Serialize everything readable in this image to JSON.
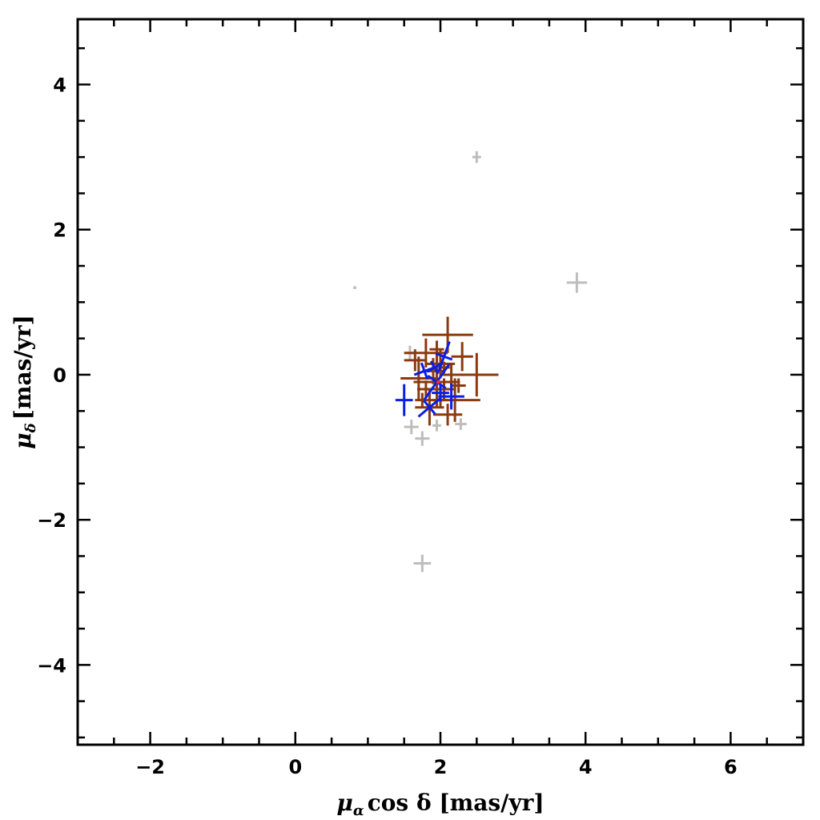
{
  "chart_data": {
    "type": "scatter",
    "xlabel": "μ_α cos δ [mas/yr]",
    "xlabel_parts": {
      "sym": "μ",
      "sub": "α",
      "rest": "cos δ [mas/yr]"
    },
    "ylabel": "μ_δ [mas/yr]",
    "ylabel_parts": {
      "sym": "μ",
      "sub": "δ",
      "rest": "[mas/yr]"
    },
    "xlim": [
      -3,
      7
    ],
    "ylim": [
      -5.1,
      4.9
    ],
    "xticks": [
      -2,
      0,
      2,
      4,
      6
    ],
    "xtick_labels": [
      "−2",
      "0",
      "2",
      "4",
      "6"
    ],
    "yticks": [
      -4,
      -2,
      0,
      2,
      4
    ],
    "ytick_labels": [
      "−4",
      "−2",
      "0",
      "2",
      "4"
    ],
    "grid": false,
    "colors": {
      "field": "#bdbdbd",
      "members": "#8b3a0f",
      "selected": "#0a1ee6",
      "mean": "#ff2a2a"
    },
    "series": [
      {
        "key": "field",
        "color": "#bdbdbd",
        "points": [
          {
            "x": 2.5,
            "y": 3.0,
            "ex": 0.06,
            "ey": 0.08
          },
          {
            "x": 0.82,
            "y": 1.2,
            "ex": 0.02,
            "ey": 0.02
          },
          {
            "x": 3.88,
            "y": 1.27,
            "ex": 0.14,
            "ey": 0.14
          },
          {
            "x": 1.75,
            "y": -2.6,
            "ex": 0.12,
            "ey": 0.12
          },
          {
            "x": 1.75,
            "y": -0.88,
            "ex": 0.1,
            "ey": 0.1
          },
          {
            "x": 1.58,
            "y": 0.3,
            "ex": 0.08,
            "ey": 0.1
          },
          {
            "x": 2.28,
            "y": -0.68,
            "ex": 0.08,
            "ey": 0.08
          },
          {
            "x": 1.6,
            "y": -0.72,
            "ex": 0.1,
            "ey": 0.1
          },
          {
            "x": 1.95,
            "y": -0.7,
            "ex": 0.06,
            "ey": 0.08
          }
        ]
      },
      {
        "key": "members",
        "color": "#8b3a0f",
        "points": [
          {
            "x": 1.95,
            "y": -0.1,
            "ex": 0.32,
            "ey": 0.35
          },
          {
            "x": 2.1,
            "y": 0.55,
            "ex": 0.35,
            "ey": 0.25
          },
          {
            "x": 1.8,
            "y": 0.3,
            "ex": 0.3,
            "ey": 0.2
          },
          {
            "x": 2.5,
            "y": 0.0,
            "ex": 0.3,
            "ey": 0.3
          },
          {
            "x": 2.2,
            "y": -0.35,
            "ex": 0.35,
            "ey": 0.3
          },
          {
            "x": 1.7,
            "y": -0.05,
            "ex": 0.25,
            "ey": 0.3
          },
          {
            "x": 1.85,
            "y": -0.45,
            "ex": 0.2,
            "ey": 0.25
          },
          {
            "x": 2.0,
            "y": 0.15,
            "ex": 0.2,
            "ey": 0.2
          },
          {
            "x": 1.9,
            "y": 0.05,
            "ex": 0.15,
            "ey": 0.18
          },
          {
            "x": 2.05,
            "y": -0.2,
            "ex": 0.15,
            "ey": 0.15
          },
          {
            "x": 2.15,
            "y": 0.0,
            "ex": 0.12,
            "ey": 0.15
          },
          {
            "x": 1.8,
            "y": -0.2,
            "ex": 0.12,
            "ey": 0.12
          },
          {
            "x": 2.1,
            "y": -0.55,
            "ex": 0.2,
            "ey": 0.15
          },
          {
            "x": 1.65,
            "y": 0.2,
            "ex": 0.15,
            "ey": 0.15
          },
          {
            "x": 2.3,
            "y": 0.25,
            "ex": 0.15,
            "ey": 0.2
          },
          {
            "x": 2.0,
            "y": -0.35,
            "ex": 0.1,
            "ey": 0.1
          },
          {
            "x": 1.95,
            "y": 0.35,
            "ex": 0.1,
            "ey": 0.12
          },
          {
            "x": 2.25,
            "y": -0.15,
            "ex": 0.1,
            "ey": 0.1
          },
          {
            "x": 1.75,
            "y": -0.35,
            "ex": 0.1,
            "ey": 0.1
          },
          {
            "x": 2.05,
            "y": 0.1,
            "ex": 0.08,
            "ey": 0.08
          }
        ]
      },
      {
        "key": "selected",
        "color": "#0a1ee6",
        "points": [
          {
            "x": 1.95,
            "y": -0.1,
            "ex": 0.3,
            "ey": 0.15,
            "rot": 55
          },
          {
            "x": 2.05,
            "y": 0.25,
            "ex": 0.22,
            "ey": 0.12,
            "rot": 70
          },
          {
            "x": 1.5,
            "y": -0.35,
            "ex": 0.12,
            "ey": 0.22,
            "rot": 0
          },
          {
            "x": 2.15,
            "y": -0.3,
            "ex": 0.18,
            "ey": 0.18,
            "rot": 0
          },
          {
            "x": 1.85,
            "y": -0.45,
            "ex": 0.2,
            "ey": 0.12,
            "rot": 40
          },
          {
            "x": 1.78,
            "y": 0.05,
            "ex": 0.15,
            "ey": 0.12,
            "rot": 20
          },
          {
            "x": 2.0,
            "y": -0.25,
            "ex": 0.12,
            "ey": 0.12,
            "rot": 0
          },
          {
            "x": 1.92,
            "y": 0.1,
            "ex": 0.12,
            "ey": 0.1,
            "rot": 30
          }
        ]
      },
      {
        "key": "mean",
        "color": "#ff2a2a",
        "points": [
          {
            "x": 1.97,
            "y": -0.1,
            "ex": 0.02,
            "ey": 0.02
          }
        ]
      }
    ]
  }
}
